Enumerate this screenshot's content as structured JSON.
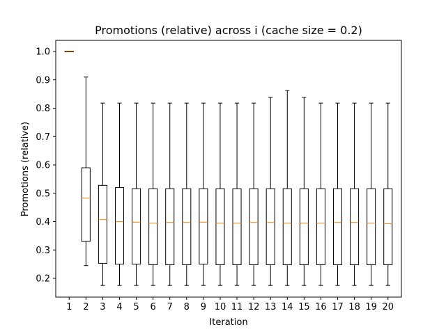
{
  "chart_data": {
    "type": "box",
    "title": "Promotions (relative) across i (cache size = 0.2)",
    "xlabel": "Iteration",
    "ylabel": "Promotions (relative)",
    "ylim": [
      0.13,
      1.05
    ],
    "yticks": [
      0.2,
      0.3,
      0.4,
      0.5,
      0.6,
      0.7,
      0.8,
      0.9,
      1.0
    ],
    "ytick_labels": [
      "0.2",
      "0.3",
      "0.4",
      "0.5",
      "0.6",
      "0.7",
      "0.8",
      "0.9",
      "1.0"
    ],
    "categories": [
      "1",
      "2",
      "3",
      "4",
      "5",
      "6",
      "7",
      "8",
      "9",
      "10",
      "11",
      "12",
      "13",
      "14",
      "15",
      "16",
      "17",
      "18",
      "19",
      "20"
    ],
    "boxes": [
      {
        "whislo": 1.0,
        "q1": 1.0,
        "med": 1.0,
        "q3": 1.0,
        "whishi": 1.0
      },
      {
        "whislo": 0.245,
        "q1": 0.33,
        "med": 0.483,
        "q3": 0.59,
        "whishi": 0.91
      },
      {
        "whislo": 0.175,
        "q1": 0.253,
        "med": 0.407,
        "q3": 0.528,
        "whishi": 0.818
      },
      {
        "whislo": 0.175,
        "q1": 0.25,
        "med": 0.4,
        "q3": 0.52,
        "whishi": 0.818
      },
      {
        "whislo": 0.175,
        "q1": 0.25,
        "med": 0.398,
        "q3": 0.516,
        "whishi": 0.818
      },
      {
        "whislo": 0.175,
        "q1": 0.248,
        "med": 0.395,
        "q3": 0.516,
        "whishi": 0.818
      },
      {
        "whislo": 0.175,
        "q1": 0.248,
        "med": 0.397,
        "q3": 0.516,
        "whishi": 0.818
      },
      {
        "whislo": 0.175,
        "q1": 0.248,
        "med": 0.397,
        "q3": 0.516,
        "whishi": 0.818
      },
      {
        "whislo": 0.175,
        "q1": 0.25,
        "med": 0.398,
        "q3": 0.516,
        "whishi": 0.818
      },
      {
        "whislo": 0.175,
        "q1": 0.248,
        "med": 0.395,
        "q3": 0.516,
        "whishi": 0.818
      },
      {
        "whislo": 0.175,
        "q1": 0.248,
        "med": 0.395,
        "q3": 0.516,
        "whishi": 0.818
      },
      {
        "whislo": 0.175,
        "q1": 0.248,
        "med": 0.397,
        "q3": 0.516,
        "whishi": 0.818
      },
      {
        "whislo": 0.175,
        "q1": 0.248,
        "med": 0.397,
        "q3": 0.516,
        "whishi": 0.838
      },
      {
        "whislo": 0.175,
        "q1": 0.248,
        "med": 0.395,
        "q3": 0.516,
        "whishi": 0.862
      },
      {
        "whislo": 0.175,
        "q1": 0.248,
        "med": 0.395,
        "q3": 0.516,
        "whishi": 0.838
      },
      {
        "whislo": 0.175,
        "q1": 0.248,
        "med": 0.395,
        "q3": 0.516,
        "whishi": 0.818
      },
      {
        "whislo": 0.175,
        "q1": 0.248,
        "med": 0.397,
        "q3": 0.516,
        "whishi": 0.818
      },
      {
        "whislo": 0.175,
        "q1": 0.248,
        "med": 0.397,
        "q3": 0.516,
        "whishi": 0.818
      },
      {
        "whislo": 0.175,
        "q1": 0.248,
        "med": 0.395,
        "q3": 0.516,
        "whishi": 0.818
      },
      {
        "whislo": 0.175,
        "q1": 0.248,
        "med": 0.393,
        "q3": 0.516,
        "whishi": 0.818
      }
    ],
    "grid": false,
    "colors": {
      "box": "#000000",
      "median": "#ff7f0e"
    }
  }
}
